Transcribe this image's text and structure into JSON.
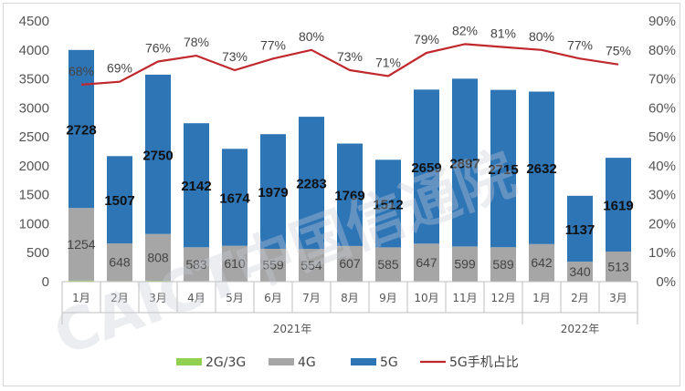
{
  "chart_data": {
    "type": "bar",
    "stacked": true,
    "categories": [
      "1月",
      "2月",
      "3月",
      "4月",
      "5月",
      "6月",
      "7月",
      "8月",
      "9月",
      "10月",
      "11月",
      "12月",
      "1月",
      "2月",
      "3月"
    ],
    "groups": [
      {
        "label": "2021年",
        "start": 0,
        "end": 11
      },
      {
        "label": "2022年",
        "start": 12,
        "end": 14
      }
    ],
    "series": [
      {
        "name": "2G/3G",
        "kind": "bar",
        "color": "#92d050",
        "values": [
          18,
          12,
          15,
          10,
          9,
          8,
          9,
          8,
          7,
          9,
          8,
          7,
          6,
          5,
          6
        ]
      },
      {
        "name": "4G",
        "kind": "bar",
        "color": "#a6a6a6",
        "values": [
          1254,
          648,
          808,
          583,
          610,
          559,
          554,
          607,
          585,
          647,
          599,
          589,
          642,
          340,
          513
        ]
      },
      {
        "name": "5G",
        "kind": "bar",
        "color": "#2e75b6",
        "values": [
          2728,
          1507,
          2750,
          2142,
          1674,
          1979,
          2283,
          1769,
          1512,
          2659,
          2897,
          2715,
          2632,
          1137,
          1619
        ]
      },
      {
        "name": "5G手机占比",
        "kind": "line",
        "axis": "right",
        "color": "#c0282d",
        "values": [
          68,
          69,
          76,
          78,
          73,
          77,
          80,
          73,
          71,
          79,
          82,
          81,
          80,
          77,
          75
        ]
      }
    ],
    "pct_labels": [
      "68%",
      "69%",
      "76%",
      "78%",
      "73%",
      "77%",
      "80%",
      "73%",
      "71%",
      "79%",
      "82%",
      "81%",
      "80%",
      "77%",
      "75%"
    ],
    "y_left": {
      "min": 0,
      "max": 4500,
      "ticks": [
        "0",
        "500",
        "1000",
        "1500",
        "2000",
        "2500",
        "3000",
        "3500",
        "4000",
        "4500"
      ]
    },
    "y_right": {
      "min": 0,
      "max": 90,
      "ticks": [
        "0%",
        "10%",
        "20%",
        "30%",
        "40%",
        "50%",
        "60%",
        "70%",
        "80%",
        "90%"
      ]
    },
    "grid": false,
    "legend": {
      "position": "bottom"
    }
  },
  "watermark": "CAICT中国信通院"
}
